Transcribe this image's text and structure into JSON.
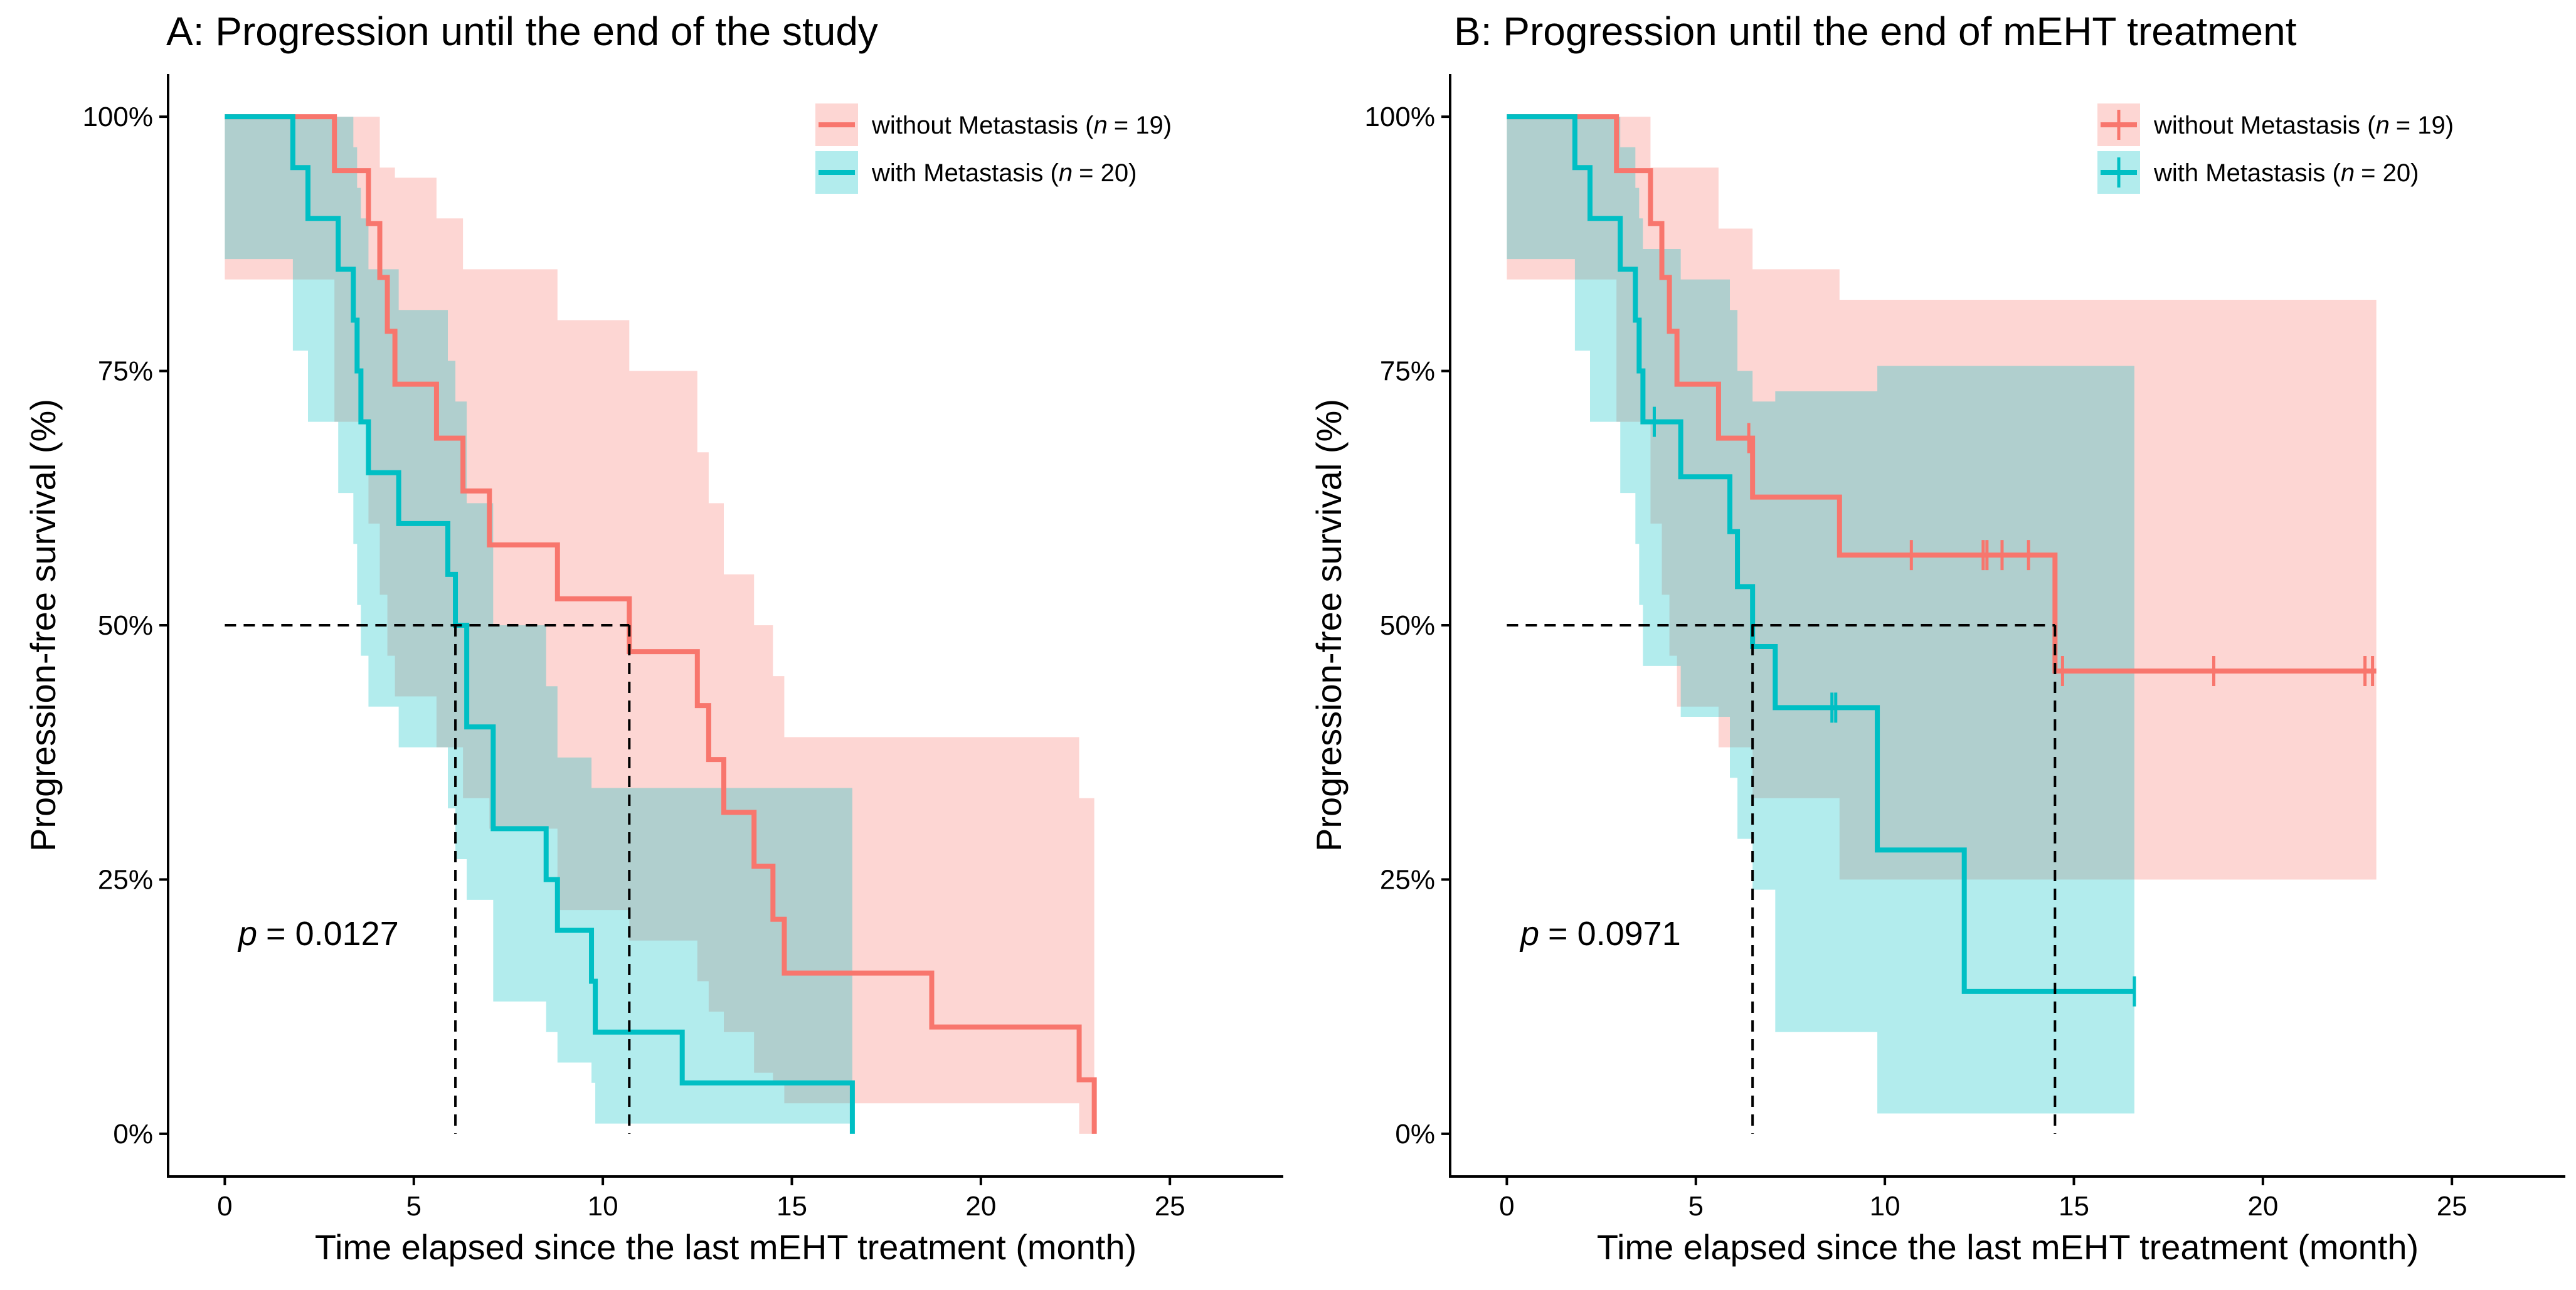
{
  "chart_data": [
    {
      "type": "line",
      "subtype": "kaplan-meier",
      "title": "A: Progression until the end of the study",
      "xlabel": "Time elapsed since the last mEHT treatment (month)",
      "ylabel": "Progression-free survival (%)",
      "xlim": [
        -1.5,
        28
      ],
      "ylim": [
        -0.042,
        1.042
      ],
      "xticks": [
        0,
        5,
        10,
        15,
        20,
        25
      ],
      "xtick_labels": [
        "0",
        "5",
        "10",
        "15",
        "20",
        "25"
      ],
      "yticks": [
        0,
        0.25,
        0.5,
        0.75,
        1
      ],
      "ytick_labels": [
        "0%",
        "25%",
        "50%",
        "75%",
        "100%"
      ],
      "p_label": "p",
      "p_value": "= 0.0127",
      "median_line_y": 0.5,
      "series": [
        {
          "name": "without Metastasis",
          "n_label": "n",
          "n_value": "= 19",
          "color": "#F8766D",
          "band_color": "#F8766D",
          "steps": [
            [
              0,
              1
            ],
            [
              2.9,
              0.947
            ],
            [
              3.8,
              0.895
            ],
            [
              4.1,
              0.842
            ],
            [
              4.3,
              0.789
            ],
            [
              4.5,
              0.737
            ],
            [
              5.6,
              0.684
            ],
            [
              6.3,
              0.632
            ],
            [
              7.0,
              0.579
            ],
            [
              8.8,
              0.526
            ],
            [
              10.7,
              0.474
            ],
            [
              12.5,
              0.421
            ],
            [
              12.8,
              0.368
            ],
            [
              13.2,
              0.316
            ],
            [
              14.0,
              0.263
            ],
            [
              14.5,
              0.211
            ],
            [
              14.8,
              0.158
            ],
            [
              18.7,
              0.105
            ],
            [
              22.6,
              0.053
            ],
            [
              23.0,
              0.0
            ]
          ],
          "lower": [
            0.84,
            0.7,
            0.6,
            0.53,
            0.47,
            0.43,
            0.38,
            0.33,
            0.3,
            0.22,
            0.19,
            0.15,
            0.12,
            0.1,
            0.06,
            0.05,
            0.03,
            0.03,
            0.0,
            0.0
          ],
          "upper": [
            1.0,
            1.0,
            1.0,
            0.95,
            0.95,
            0.94,
            0.9,
            0.85,
            0.85,
            0.8,
            0.75,
            0.67,
            0.62,
            0.55,
            0.5,
            0.45,
            0.39,
            0.39,
            0.33,
            0.33
          ],
          "censor_times": []
        },
        {
          "name": "with Metastasis",
          "n_label": "n",
          "n_value": "= 20",
          "color": "#00BFC4",
          "band_color": "#00BFC4",
          "steps": [
            [
              0,
              1
            ],
            [
              1.8,
              0.95
            ],
            [
              2.2,
              0.9
            ],
            [
              3.0,
              0.85
            ],
            [
              3.4,
              0.8
            ],
            [
              3.5,
              0.75
            ],
            [
              3.6,
              0.7
            ],
            [
              3.8,
              0.65
            ],
            [
              4.6,
              0.6
            ],
            [
              5.9,
              0.55
            ],
            [
              6.1,
              0.5
            ],
            [
              6.4,
              0.4
            ],
            [
              7.1,
              0.3
            ],
            [
              8.5,
              0.25
            ],
            [
              8.8,
              0.2
            ],
            [
              9.7,
              0.15
            ],
            [
              9.8,
              0.1
            ],
            [
              12.1,
              0.05
            ],
            [
              16.6,
              0.0
            ]
          ],
          "lower": [
            0.86,
            0.77,
            0.7,
            0.63,
            0.58,
            0.52,
            0.47,
            0.42,
            0.38,
            0.32,
            0.27,
            0.23,
            0.13,
            0.1,
            0.07,
            0.05,
            0.01,
            0.01,
            0.0
          ],
          "upper": [
            1.0,
            1.0,
            1.0,
            1.0,
            0.97,
            0.93,
            0.9,
            0.85,
            0.81,
            0.76,
            0.72,
            0.62,
            0.5,
            0.44,
            0.37,
            0.34,
            0.34,
            0.34,
            0.34
          ],
          "censor_times": []
        }
      ]
    },
    {
      "type": "line",
      "subtype": "kaplan-meier",
      "title": "B: Progression until the end of mEHT treatment",
      "xlabel": "Time elapsed since the last mEHT treatment (month)",
      "ylabel": "Progression-free survival (%)",
      "xlim": [
        -1.5,
        28
      ],
      "ylim": [
        -0.042,
        1.042
      ],
      "xticks": [
        0,
        5,
        10,
        15,
        20,
        25
      ],
      "xtick_labels": [
        "0",
        "5",
        "10",
        "15",
        "20",
        "25"
      ],
      "yticks": [
        0,
        0.25,
        0.5,
        0.75,
        1
      ],
      "ytick_labels": [
        "0%",
        "25%",
        "50%",
        "75%",
        "100%"
      ],
      "p_label": "p",
      "p_value": "= 0.0971",
      "median_line_y": 0.5,
      "series": [
        {
          "name": "without Metastasis",
          "n_label": "n",
          "n_value": "= 19",
          "color": "#F8766D",
          "band_color": "#F8766D",
          "steps": [
            [
              0,
              1
            ],
            [
              2.9,
              0.947
            ],
            [
              3.8,
              0.895
            ],
            [
              4.1,
              0.842
            ],
            [
              4.3,
              0.789
            ],
            [
              4.5,
              0.737
            ],
            [
              5.6,
              0.684
            ],
            [
              6.5,
              0.626
            ],
            [
              8.8,
              0.569
            ],
            [
              14.5,
              0.455
            ],
            [
              23.0,
              0.455
            ]
          ],
          "lower": [
            0.84,
            0.7,
            0.6,
            0.53,
            0.47,
            0.42,
            0.38,
            0.33,
            0.25,
            0.25
          ],
          "upper": [
            1.0,
            1.0,
            0.95,
            0.95,
            0.95,
            0.95,
            0.89,
            0.85,
            0.82,
            0.82
          ],
          "censor_times": [
            [
              6.4,
              0.684
            ],
            [
              10.7,
              0.569
            ],
            [
              12.6,
              0.569
            ],
            [
              12.7,
              0.569
            ],
            [
              13.1,
              0.569
            ],
            [
              13.8,
              0.569
            ],
            [
              14.7,
              0.455
            ],
            [
              18.7,
              0.455
            ],
            [
              22.7,
              0.455
            ],
            [
              22.9,
              0.455
            ]
          ]
        },
        {
          "name": "with Metastasis",
          "n_label": "n",
          "n_value": "= 20",
          "color": "#00BFC4",
          "band_color": "#00BFC4",
          "steps": [
            [
              0,
              1
            ],
            [
              1.8,
              0.95
            ],
            [
              2.2,
              0.9
            ],
            [
              3.0,
              0.85
            ],
            [
              3.4,
              0.8
            ],
            [
              3.5,
              0.75
            ],
            [
              3.6,
              0.7
            ],
            [
              4.6,
              0.646
            ],
            [
              5.9,
              0.592
            ],
            [
              6.1,
              0.538
            ],
            [
              6.5,
              0.479
            ],
            [
              7.1,
              0.419
            ],
            [
              9.8,
              0.279
            ],
            [
              12.1,
              0.14
            ],
            [
              16.6,
              0.14
            ]
          ],
          "lower": [
            0.86,
            0.77,
            0.7,
            0.63,
            0.58,
            0.52,
            0.46,
            0.41,
            0.35,
            0.29,
            0.24,
            0.1,
            0.02,
            0.02
          ],
          "upper": [
            1.0,
            1.0,
            1.0,
            0.97,
            0.93,
            0.9,
            0.87,
            0.84,
            0.81,
            0.75,
            0.72,
            0.73,
            0.755,
            0.755
          ],
          "censor_times": [
            [
              3.9,
              0.7
            ],
            [
              8.6,
              0.419
            ],
            [
              8.7,
              0.419
            ],
            [
              16.6,
              0.14
            ]
          ]
        }
      ]
    }
  ]
}
